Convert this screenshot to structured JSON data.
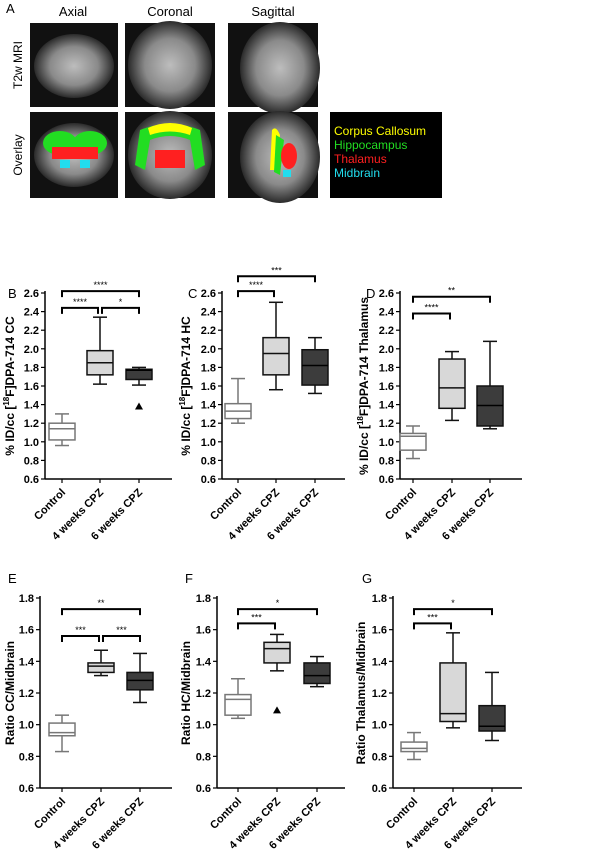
{
  "panel_a": {
    "letter": "A",
    "columns": [
      "Axial",
      "Coronal",
      "Sagittal"
    ],
    "rows": [
      "T2w MRI",
      "Overlay"
    ],
    "legend": [
      {
        "label": "Corpus Callosum",
        "color": "#ffff00"
      },
      {
        "label": "Hippocampus",
        "color": "#22dd22"
      },
      {
        "label": "Thalamus",
        "color": "#ff2020"
      },
      {
        "label": "Midbrain",
        "color": "#22ddee"
      }
    ]
  },
  "colors": {
    "control": "#ffffff",
    "4w": "#d8d8d8",
    "6w": "#3c3c3c",
    "control_stroke": "#777777",
    "stroke": "#111111"
  },
  "chart_data": [
    {
      "panel": "B",
      "type": "box",
      "ylabel": [
        "% ID/cc [",
        "18",
        "F]DPA-714 CC"
      ],
      "ylim": [
        0.6,
        2.6
      ],
      "yticks": [
        "0.6",
        "0.8",
        "1.0",
        "1.2",
        "1.4",
        "1.6",
        "1.8",
        "2.0",
        "2.2",
        "2.4",
        "2.6"
      ],
      "categories": [
        "Control",
        "4 weeks CPZ",
        "6 weeks CPZ"
      ],
      "boxes": [
        [
          0.96,
          1.02,
          1.14,
          1.2,
          1.3
        ],
        [
          1.62,
          1.72,
          1.85,
          1.98,
          2.34
        ],
        [
          1.61,
          1.67,
          1.77,
          1.78,
          1.8
        ]
      ],
      "outliers": [
        [],
        [],
        [
          1.38
        ]
      ],
      "significance": [
        {
          "from": 0,
          "to": 1,
          "label": "****"
        },
        {
          "from": 1,
          "to": 2,
          "label": "*"
        },
        {
          "from": 0,
          "to": 2,
          "label": "****"
        }
      ]
    },
    {
      "panel": "C",
      "type": "box",
      "ylabel": [
        "% ID/cc [",
        "18",
        "F]DPA-714 HC"
      ],
      "ylim": [
        0.6,
        2.6
      ],
      "yticks": [
        "0.6",
        "0.8",
        "1.0",
        "1.2",
        "1.4",
        "1.6",
        "1.8",
        "2.0",
        "2.2",
        "2.4",
        "2.6"
      ],
      "categories": [
        "Control",
        "4 weeks CPZ",
        "6 weeks CPZ"
      ],
      "boxes": [
        [
          1.2,
          1.25,
          1.33,
          1.41,
          1.68
        ],
        [
          1.56,
          1.72,
          1.95,
          2.12,
          2.5
        ],
        [
          1.52,
          1.61,
          1.82,
          1.99,
          2.12
        ]
      ],
      "outliers": [
        [],
        [],
        []
      ],
      "significance": [
        {
          "from": 0,
          "to": 1,
          "label": "****"
        },
        {
          "from": 0,
          "to": 2,
          "label": "***"
        }
      ]
    },
    {
      "panel": "D",
      "type": "box",
      "ylabel": [
        "% ID/cc [",
        "18",
        "F]DPA-714 Thalamus"
      ],
      "ylim": [
        0.6,
        2.6
      ],
      "yticks": [
        "0.6",
        "0.8",
        "1.0",
        "1.2",
        "1.4",
        "1.6",
        "1.8",
        "2.0",
        "2.2",
        "2.4",
        "2.6"
      ],
      "categories": [
        "Control",
        "4 weeks CPZ",
        "6 weeks CPZ"
      ],
      "boxes": [
        [
          0.82,
          0.91,
          1.06,
          1.09,
          1.17
        ],
        [
          1.23,
          1.36,
          1.58,
          1.89,
          1.97
        ],
        [
          1.14,
          1.17,
          1.39,
          1.6,
          2.08
        ]
      ],
      "outliers": [
        [],
        [],
        []
      ],
      "significance": [
        {
          "from": 0,
          "to": 1,
          "label": "****"
        },
        {
          "from": 0,
          "to": 2,
          "label": "**"
        }
      ]
    },
    {
      "panel": "E",
      "type": "box",
      "ylabel": [
        "Ratio CC/Midbrain"
      ],
      "ylim": [
        0.6,
        1.8
      ],
      "yticks": [
        "0.6",
        "0.8",
        "1.0",
        "1.2",
        "1.4",
        "1.6",
        "1.8"
      ],
      "categories": [
        "Control",
        "4 weeks CPZ",
        "6 weeks CPZ"
      ],
      "boxes": [
        [
          0.83,
          0.93,
          0.95,
          1.01,
          1.06
        ],
        [
          1.31,
          1.33,
          1.37,
          1.39,
          1.47
        ],
        [
          1.14,
          1.22,
          1.28,
          1.33,
          1.45
        ]
      ],
      "outliers": [
        [],
        [],
        []
      ],
      "significance": [
        {
          "from": 0,
          "to": 1,
          "label": "***"
        },
        {
          "from": 1,
          "to": 2,
          "label": "***"
        },
        {
          "from": 0,
          "to": 2,
          "label": "**"
        }
      ]
    },
    {
      "panel": "F",
      "type": "box",
      "ylabel": [
        "Ratio HC/Midbrain"
      ],
      "ylim": [
        0.6,
        1.8
      ],
      "yticks": [
        "0.6",
        "0.8",
        "1.0",
        "1.2",
        "1.4",
        "1.6",
        "1.8"
      ],
      "categories": [
        "Control",
        "4 weeks CPZ",
        "6 weeks CPZ"
      ],
      "boxes": [
        [
          1.04,
          1.06,
          1.16,
          1.19,
          1.29
        ],
        [
          1.34,
          1.39,
          1.48,
          1.52,
          1.57
        ],
        [
          1.24,
          1.26,
          1.31,
          1.39,
          1.43
        ]
      ],
      "outliers": [
        [],
        [
          1.09
        ],
        []
      ],
      "significance": [
        {
          "from": 0,
          "to": 1,
          "label": "***"
        },
        {
          "from": 0,
          "to": 2,
          "label": "*"
        }
      ]
    },
    {
      "panel": "G",
      "type": "box",
      "ylabel": [
        "Ratio Thalamus/Midbrain"
      ],
      "ylim": [
        0.6,
        1.8
      ],
      "yticks": [
        "0.6",
        "0.8",
        "1.0",
        "1.2",
        "1.4",
        "1.6",
        "1.8"
      ],
      "categories": [
        "Control",
        "4 weeks CPZ",
        "6 weeks CPZ"
      ],
      "boxes": [
        [
          0.78,
          0.83,
          0.85,
          0.89,
          0.95
        ],
        [
          0.98,
          1.02,
          1.07,
          1.39,
          1.58
        ],
        [
          0.9,
          0.96,
          0.99,
          1.12,
          1.33
        ]
      ],
      "outliers": [
        [],
        [],
        []
      ],
      "significance": [
        {
          "from": 0,
          "to": 1,
          "label": "***"
        },
        {
          "from": 0,
          "to": 2,
          "label": "*"
        }
      ]
    }
  ]
}
